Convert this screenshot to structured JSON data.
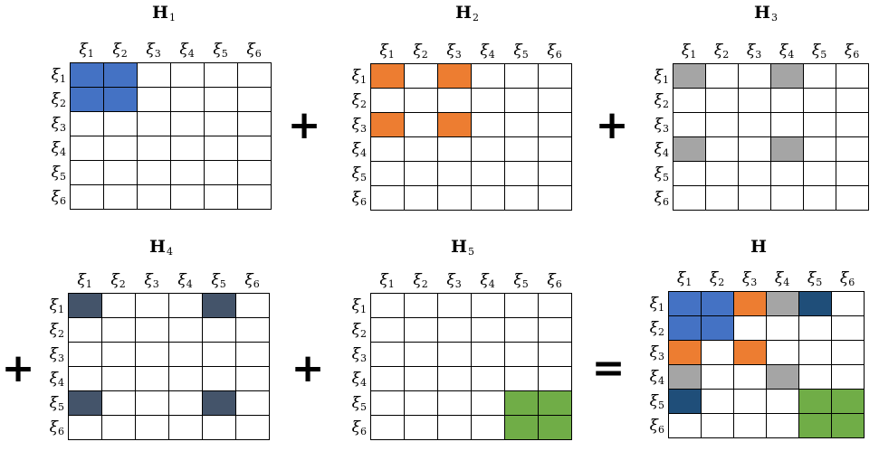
{
  "labels": [
    "ξ1",
    "ξ2",
    "ξ3",
    "ξ4",
    "ξ5",
    "ξ6"
  ],
  "colors": {
    "blue": "#4472C4",
    "orange": "#ED7D31",
    "gray": "#A5A5A5",
    "navy": "#44546A",
    "darkblue": "#1F4E79",
    "green": "#70AD47"
  },
  "operators": {
    "plus": "+",
    "equals": "="
  },
  "matrices": [
    {
      "id": "h1",
      "title_main": "H",
      "title_sub": "1",
      "filled": [
        {
          "r": 0,
          "c": 0,
          "color": "blue"
        },
        {
          "r": 0,
          "c": 1,
          "color": "blue"
        },
        {
          "r": 1,
          "c": 0,
          "color": "blue"
        },
        {
          "r": 1,
          "c": 1,
          "color": "blue"
        }
      ]
    },
    {
      "id": "h2",
      "title_main": "H",
      "title_sub": "2",
      "filled": [
        {
          "r": 0,
          "c": 0,
          "color": "orange"
        },
        {
          "r": 0,
          "c": 2,
          "color": "orange"
        },
        {
          "r": 2,
          "c": 0,
          "color": "orange"
        },
        {
          "r": 2,
          "c": 2,
          "color": "orange"
        }
      ]
    },
    {
      "id": "h3",
      "title_main": "H",
      "title_sub": "3",
      "filled": [
        {
          "r": 0,
          "c": 0,
          "color": "gray"
        },
        {
          "r": 0,
          "c": 3,
          "color": "gray"
        },
        {
          "r": 3,
          "c": 0,
          "color": "gray"
        },
        {
          "r": 3,
          "c": 3,
          "color": "gray"
        }
      ]
    },
    {
      "id": "h4",
      "title_main": "H",
      "title_sub": "4",
      "filled": [
        {
          "r": 0,
          "c": 0,
          "color": "navy"
        },
        {
          "r": 0,
          "c": 4,
          "color": "navy"
        },
        {
          "r": 4,
          "c": 0,
          "color": "navy"
        },
        {
          "r": 4,
          "c": 4,
          "color": "navy"
        }
      ]
    },
    {
      "id": "h5",
      "title_main": "H",
      "title_sub": "5",
      "filled": [
        {
          "r": 4,
          "c": 4,
          "color": "green"
        },
        {
          "r": 4,
          "c": 5,
          "color": "green"
        },
        {
          "r": 5,
          "c": 4,
          "color": "green"
        },
        {
          "r": 5,
          "c": 5,
          "color": "green"
        }
      ]
    },
    {
      "id": "h",
      "title_main": "H",
      "title_sub": "",
      "filled": [
        {
          "r": 0,
          "c": 0,
          "color": "blue"
        },
        {
          "r": 0,
          "c": 1,
          "color": "blue"
        },
        {
          "r": 1,
          "c": 0,
          "color": "blue"
        },
        {
          "r": 1,
          "c": 1,
          "color": "blue"
        },
        {
          "r": 0,
          "c": 2,
          "color": "orange"
        },
        {
          "r": 2,
          "c": 0,
          "color": "orange"
        },
        {
          "r": 2,
          "c": 2,
          "color": "orange"
        },
        {
          "r": 0,
          "c": 3,
          "color": "gray"
        },
        {
          "r": 3,
          "c": 0,
          "color": "gray"
        },
        {
          "r": 3,
          "c": 3,
          "color": "gray"
        },
        {
          "r": 0,
          "c": 4,
          "color": "darkblue"
        },
        {
          "r": 4,
          "c": 0,
          "color": "darkblue"
        },
        {
          "r": 4,
          "c": 4,
          "color": "green"
        },
        {
          "r": 4,
          "c": 5,
          "color": "green"
        },
        {
          "r": 5,
          "c": 4,
          "color": "green"
        },
        {
          "r": 5,
          "c": 5,
          "color": "green"
        }
      ]
    }
  ]
}
